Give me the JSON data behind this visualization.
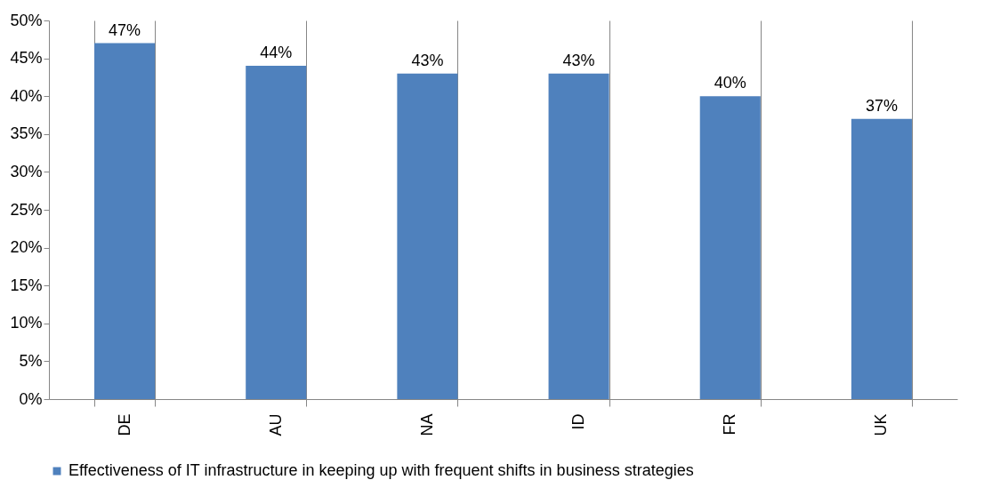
{
  "chart_data": {
    "type": "bar",
    "categories": [
      "DE",
      "AU",
      "NA",
      "ID",
      "FR",
      "UK"
    ],
    "series": [
      {
        "name": "Effectiveness of IT infrastructure in keeping up with frequent shifts in business strategies",
        "color": "#4f81bd",
        "values": [
          47,
          44,
          43,
          43,
          40,
          37
        ],
        "value_labels": [
          "47%",
          "44%",
          "43%",
          "43%",
          "40%",
          "37%"
        ]
      }
    ],
    "ylim": [
      0,
      50
    ],
    "yticks": [
      {
        "value": 0,
        "label": "0%"
      },
      {
        "value": 5,
        "label": "5%"
      },
      {
        "value": 10,
        "label": "10%"
      },
      {
        "value": 15,
        "label": "15%"
      },
      {
        "value": 20,
        "label": "20%"
      },
      {
        "value": 25,
        "label": "25%"
      },
      {
        "value": 30,
        "label": "30%"
      },
      {
        "value": 35,
        "label": "35%"
      },
      {
        "value": 40,
        "label": "40%"
      },
      {
        "value": 45,
        "label": "45%"
      },
      {
        "value": 50,
        "label": "50%"
      }
    ],
    "grid": "x",
    "legend": "bottom"
  }
}
